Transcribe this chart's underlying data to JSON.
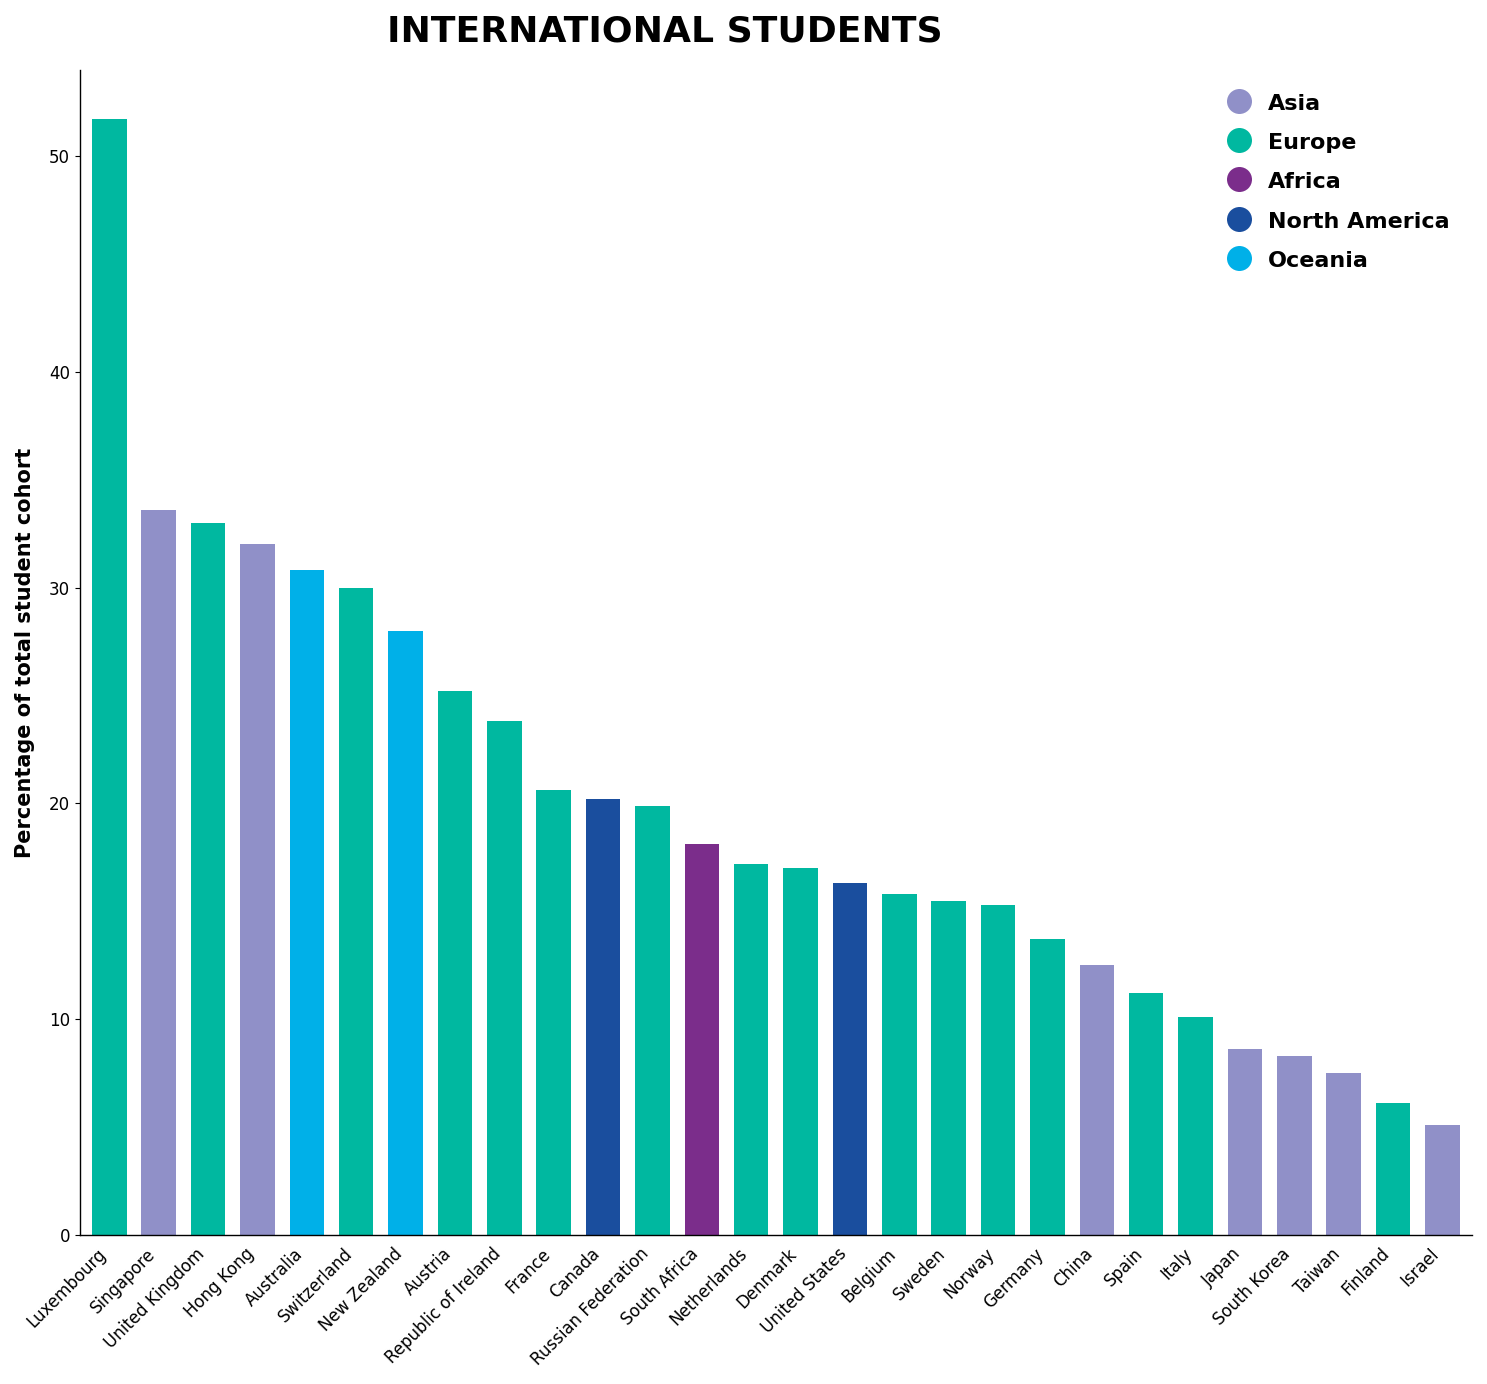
{
  "title": "INTERNATIONAL STUDENTS",
  "ylabel": "Percentage of total student cohort",
  "countries": [
    "Luxembourg",
    "Singapore",
    "United Kingdom",
    "Hong Kong",
    "Australia",
    "Switzerland",
    "New Zealand",
    "Austria",
    "Republic of Ireland",
    "France",
    "Canada",
    "Russian Federation",
    "South Africa",
    "Netherlands",
    "Denmark",
    "United States",
    "Belgium",
    "Sweden",
    "Norway",
    "Germany",
    "China",
    "Spain",
    "Italy",
    "Japan",
    "South Korea",
    "Taiwan",
    "Finland",
    "Israel"
  ],
  "values": [
    51.7,
    33.6,
    33.0,
    32.0,
    30.8,
    30.0,
    28.0,
    25.2,
    23.8,
    20.6,
    20.2,
    19.9,
    18.1,
    17.2,
    17.0,
    16.3,
    15.8,
    15.5,
    15.3,
    13.7,
    12.5,
    11.2,
    10.1,
    8.6,
    8.3,
    7.5,
    6.1,
    5.1
  ],
  "regions": [
    "Europe",
    "Asia",
    "Europe",
    "Asia",
    "Oceania",
    "Europe",
    "Oceania",
    "Europe",
    "Europe",
    "Europe",
    "North America",
    "Europe",
    "Africa",
    "Europe",
    "Europe",
    "North America",
    "Europe",
    "Europe",
    "Europe",
    "Europe",
    "Asia",
    "Europe",
    "Europe",
    "Asia",
    "Asia",
    "Asia",
    "Europe",
    "Asia"
  ],
  "region_colors": {
    "Asia": "#9090c8",
    "Europe": "#00b8a0",
    "Africa": "#7b2d8b",
    "North America": "#1a4e9e",
    "Oceania": "#00b0e8"
  },
  "legend_regions": [
    "Asia",
    "Europe",
    "Africa",
    "North America",
    "Oceania"
  ],
  "ylim": [
    0,
    54
  ],
  "yticks": [
    0,
    10,
    20,
    30,
    40,
    50
  ],
  "background_color": "#ffffff",
  "title_fontsize": 26,
  "ylabel_fontsize": 15,
  "tick_fontsize": 12,
  "legend_fontsize": 16
}
